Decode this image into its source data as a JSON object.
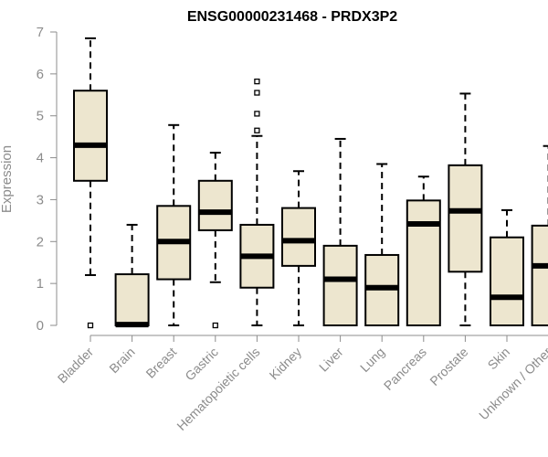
{
  "chart_data": {
    "type": "box",
    "title": "ENSG00000231468 - PRDX3P2",
    "xlabel": "",
    "ylabel": "Expression",
    "ylim": [
      0,
      7
    ],
    "yticks": [
      "0",
      "1",
      "2",
      "3",
      "4",
      "5",
      "6",
      "7"
    ],
    "grid": false,
    "colors": {
      "box_fill": "#ede6cf",
      "box_stroke": "#000000",
      "axis": "#8c8c8c"
    },
    "categories": [
      "Bladder",
      "Brain",
      "Breast",
      "Gastric",
      "Hematopoietic cells",
      "Kidney",
      "Liver",
      "Lung",
      "Pancreas",
      "Prostate",
      "Skin",
      "Unknown / Other"
    ],
    "boxes": [
      {
        "whisker_low": 1.2,
        "q1": 3.45,
        "median": 4.3,
        "q3": 5.6,
        "whisker_high": 6.85,
        "outliers": [
          0
        ]
      },
      {
        "whisker_low": 0,
        "q1": 0,
        "median": 0.02,
        "q3": 1.22,
        "whisker_high": 2.4,
        "outliers": []
      },
      {
        "whisker_low": 0,
        "q1": 1.1,
        "median": 2.0,
        "q3": 2.85,
        "whisker_high": 4.78,
        "outliers": []
      },
      {
        "whisker_low": 1.03,
        "q1": 2.27,
        "median": 2.7,
        "q3": 3.45,
        "whisker_high": 4.12,
        "outliers": [
          0
        ]
      },
      {
        "whisker_low": 0,
        "q1": 0.9,
        "median": 1.65,
        "q3": 2.4,
        "whisker_high": 4.52,
        "outliers": [
          4.65,
          5.05,
          5.55,
          5.82
        ]
      },
      {
        "whisker_low": 0,
        "q1": 1.42,
        "median": 2.02,
        "q3": 2.8,
        "whisker_high": 3.68,
        "outliers": []
      },
      {
        "whisker_low": 0,
        "q1": 0,
        "median": 1.1,
        "q3": 1.9,
        "whisker_high": 4.45,
        "outliers": []
      },
      {
        "whisker_low": 0,
        "q1": 0,
        "median": 0.9,
        "q3": 1.68,
        "whisker_high": 3.85,
        "outliers": []
      },
      {
        "whisker_low": 0,
        "q1": 0,
        "median": 2.42,
        "q3": 2.98,
        "whisker_high": 3.55,
        "outliers": []
      },
      {
        "whisker_low": 0,
        "q1": 1.28,
        "median": 2.73,
        "q3": 3.82,
        "whisker_high": 5.53,
        "outliers": []
      },
      {
        "whisker_low": 0,
        "q1": 0,
        "median": 0.67,
        "q3": 2.1,
        "whisker_high": 2.75,
        "outliers": []
      },
      {
        "whisker_low": 0,
        "q1": 0,
        "median": 1.42,
        "q3": 2.38,
        "whisker_high": 4.28,
        "outliers": []
      }
    ]
  }
}
